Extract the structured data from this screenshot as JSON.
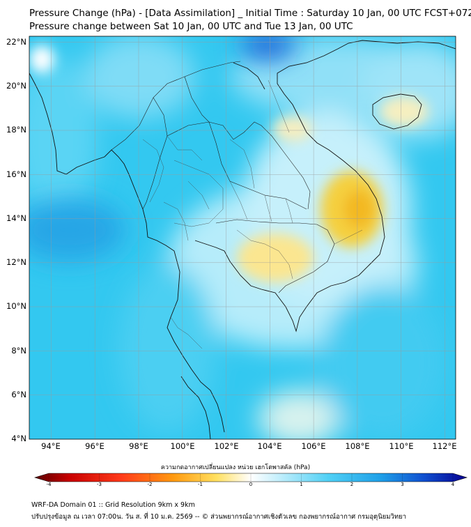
{
  "header": {
    "title": "Pressure Change (hPa) - [Data Assimilation] _ Initial Time : Saturday 10 Jan, 00 UTC FCST+072",
    "subtitle": "Pressure change between Sat 10 Jan, 00 UTC and Tue 13 Jan, 00 UTC"
  },
  "map": {
    "lat_labels": [
      "22°N",
      "20°N",
      "18°N",
      "16°N",
      "14°N",
      "12°N",
      "10°N",
      "8°N",
      "6°N",
      "4°N"
    ],
    "lon_labels": [
      "94°E",
      "96°E",
      "98°E",
      "100°E",
      "102°E",
      "104°E",
      "106°E",
      "108°E",
      "110°E",
      "112°E"
    ],
    "lat_range": [
      4,
      22.3
    ],
    "lon_range": [
      93,
      112.5
    ],
    "field": "pressure change (hPa)",
    "colors": {
      "background_field": "#33c8f0",
      "light_field": "#a8e6fa",
      "positive_rise": "#1f9be6",
      "negative_fall": "#f5c830"
    }
  },
  "colorbar": {
    "title": "ความกดอากาศเปลี่ยนแปลง หน่วย เฮกโตพาสคัล (hPa)",
    "ticks": [
      "-4",
      "-3",
      "-2",
      "-1",
      "0",
      "1",
      "2",
      "3",
      "4"
    ],
    "range": [
      -4,
      4
    ]
  },
  "footer": {
    "line1": "WRF-DA Domain 01 :: Grid Resolution 9km x 9km",
    "line2": "ปรับปรุงข้อมูล ณ เวลา 07:00น. วัน ส. ที่ 10 ม.ค. 2569 -- © ส่วนพยากรณ์อากาศเชิงตัวเลข กองพยากรณ์อากาศ กรมอุตุนิยมวิทยา"
  }
}
